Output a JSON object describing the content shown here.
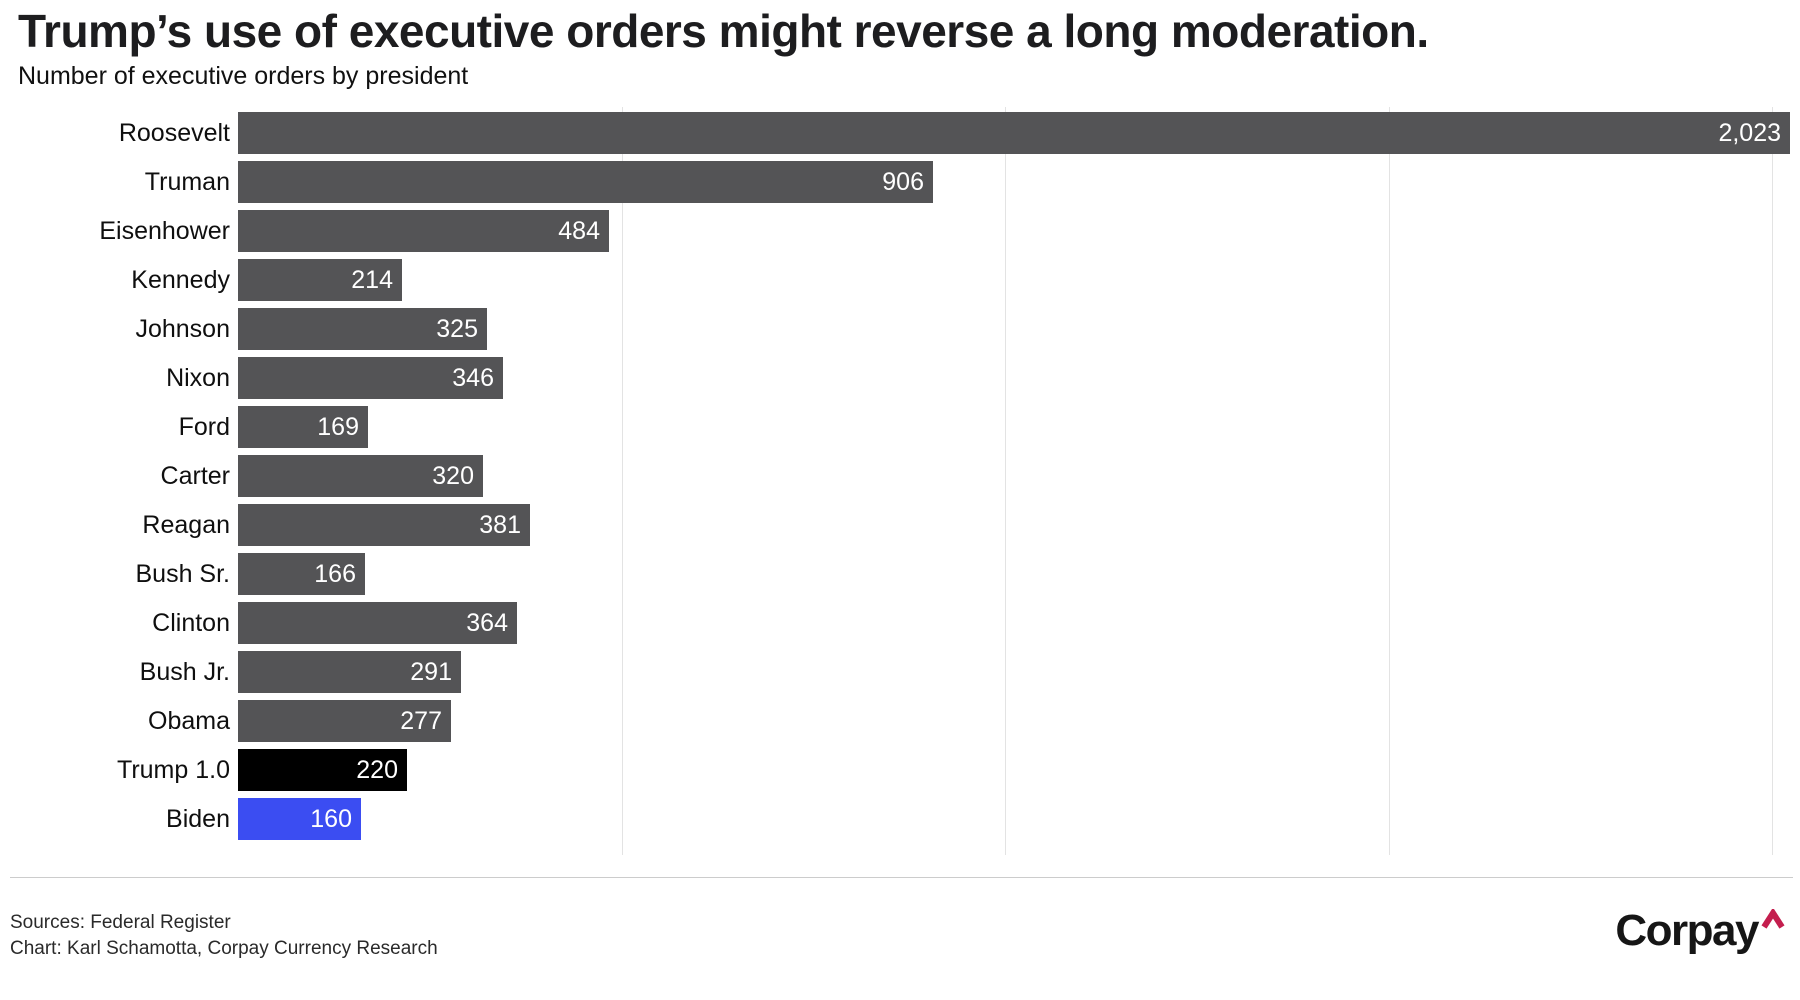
{
  "header": {
    "title": "Trump’s use of executive orders might reverse a long moderation.",
    "subtitle": "Number of executive orders by president"
  },
  "chart_data": {
    "type": "bar",
    "orientation": "horizontal",
    "title": "Trump’s use of executive orders might reverse a long moderation.",
    "subtitle": "Number of executive orders by president",
    "categories": [
      "Roosevelt",
      "Truman",
      "Eisenhower",
      "Kennedy",
      "Johnson",
      "Nixon",
      "Ford",
      "Carter",
      "Reagan",
      "Bush Sr.",
      "Clinton",
      "Bush Jr.",
      "Obama",
      "Trump 1.0",
      "Biden"
    ],
    "values": [
      2023,
      906,
      484,
      214,
      325,
      346,
      169,
      320,
      381,
      166,
      364,
      291,
      277,
      220,
      160
    ],
    "value_labels": [
      "2,023",
      "906",
      "484",
      "214",
      "325",
      "346",
      "169",
      "320",
      "381",
      "166",
      "364",
      "291",
      "277",
      "220",
      "160"
    ],
    "colors": [
      "#545456",
      "#545456",
      "#545456",
      "#545456",
      "#545456",
      "#545456",
      "#545456",
      "#545456",
      "#545456",
      "#545456",
      "#545456",
      "#545456",
      "#545456",
      "#000000",
      "#3B4DF2"
    ],
    "default_bar_color": "#545456",
    "highlight_colors": {
      "Trump 1.0": "#000000",
      "Biden": "#3B4DF2"
    },
    "value_label_color": "#ffffff",
    "value_label_position": "inside-right",
    "xlim": [
      0,
      2023
    ],
    "gridline_values": [
      500,
      1000,
      1500,
      2000
    ],
    "axis_tick_labels_visible": false,
    "grid": "vertical light-gray lines, no axis labels",
    "legend": "none"
  },
  "footer": {
    "sources_line": "Sources: Federal Register",
    "credit_line": "Chart: Karl Schamotta, Corpay Currency Research",
    "logo_text": "Corpay",
    "logo_caret": "^",
    "logo_caret_color": "#C41E4E"
  }
}
